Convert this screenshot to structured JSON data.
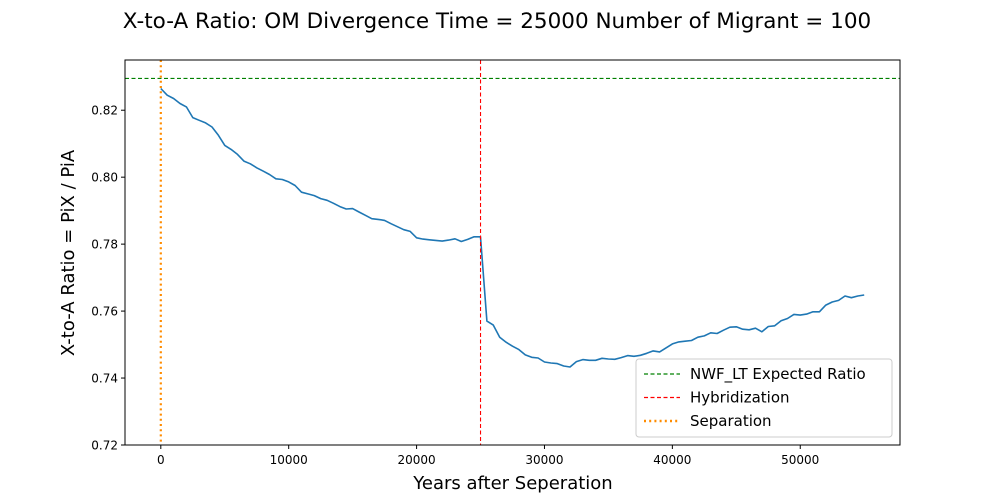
{
  "chart_data": {
    "type": "line",
    "title": "X-to-A Ratio: OM Divergence Time = 25000  Number of Migrant = 100",
    "xlabel": "Years after Seperation",
    "ylabel": "X-to-A Ratio = PiX / PiA",
    "xlim": [
      -2800,
      57800
    ],
    "ylim": [
      0.72,
      0.835
    ],
    "xticks": [
      0,
      10000,
      20000,
      30000,
      40000,
      50000
    ],
    "xtick_labels": [
      "0",
      "10000",
      "20000",
      "30000",
      "40000",
      "50000"
    ],
    "yticks": [
      0.72,
      0.74,
      0.76,
      0.78,
      0.8,
      0.82
    ],
    "ytick_labels": [
      "0.72",
      "0.74",
      "0.76",
      "0.78",
      "0.80",
      "0.82"
    ],
    "grid": false,
    "legend_position": "lower-right",
    "series": [
      {
        "color": "#1f77b4",
        "x": [
          0,
          500,
          1000,
          1500,
          2000,
          2500,
          3000,
          3500,
          4000,
          4500,
          5000,
          5500,
          6000,
          6500,
          7000,
          7500,
          8000,
          8500,
          9000,
          9500,
          10000,
          10500,
          11000,
          11500,
          12000,
          12500,
          13000,
          13500,
          14000,
          14500,
          15000,
          15500,
          16000,
          16500,
          17000,
          17500,
          18000,
          18500,
          19000,
          19500,
          20000,
          20500,
          21000,
          21500,
          22000,
          22500,
          23000,
          23500,
          24000,
          24500,
          25000,
          25500,
          26000,
          26500,
          27000,
          27500,
          28000,
          28500,
          29000,
          29500,
          30000,
          30500,
          31000,
          31500,
          32000,
          32500,
          33000,
          33500,
          34000,
          34500,
          35000,
          35500,
          36000,
          36500,
          37000,
          37500,
          38000,
          38500,
          39000,
          39500,
          40000,
          40500,
          41000,
          41500,
          42000,
          42500,
          43000,
          43500,
          44000,
          44500,
          45000,
          45500,
          46000,
          46500,
          47000,
          47500,
          48000,
          48500,
          49000,
          49500,
          50000,
          50500,
          51000,
          51500,
          52000,
          52500,
          53000,
          53500,
          54000,
          54500,
          55000
        ],
        "y": [
          0.8265,
          0.8245,
          0.8235,
          0.822,
          0.821,
          0.8178,
          0.817,
          0.8162,
          0.815,
          0.8125,
          0.8095,
          0.8083,
          0.8068,
          0.8048,
          0.804,
          0.8028,
          0.8018,
          0.8008,
          0.7995,
          0.7993,
          0.7986,
          0.7975,
          0.7955,
          0.795,
          0.7945,
          0.7936,
          0.7931,
          0.7922,
          0.7912,
          0.7905,
          0.7906,
          0.7896,
          0.7886,
          0.7876,
          0.7874,
          0.7871,
          0.7861,
          0.7852,
          0.7843,
          0.7838,
          0.7819,
          0.7815,
          0.7813,
          0.7811,
          0.7809,
          0.7812,
          0.7816,
          0.7808,
          0.7814,
          0.7822,
          0.7822,
          0.757,
          0.7558,
          0.7522,
          0.7507,
          0.7495,
          0.7485,
          0.7469,
          0.7462,
          0.746,
          0.7448,
          0.7445,
          0.7443,
          0.7436,
          0.7433,
          0.7449,
          0.7455,
          0.7453,
          0.7453,
          0.7459,
          0.7457,
          0.7456,
          0.7461,
          0.7467,
          0.7465,
          0.7468,
          0.7474,
          0.7481,
          0.7478,
          0.749,
          0.7502,
          0.7508,
          0.751,
          0.7512,
          0.7522,
          0.7526,
          0.7535,
          0.7533,
          0.7543,
          0.7552,
          0.7553,
          0.7546,
          0.7544,
          0.7549,
          0.7538,
          0.7554,
          0.7556,
          0.7571,
          0.7578,
          0.759,
          0.7588,
          0.7591,
          0.7598,
          0.7598,
          0.7618,
          0.7627,
          0.7632,
          0.7645,
          0.764,
          0.7645,
          0.7648
        ]
      }
    ],
    "reference_lines": [
      {
        "name": "NWF_LT Expected Ratio",
        "orientation": "horizontal",
        "value": 0.8295,
        "color": "#008000",
        "style": "dashed"
      },
      {
        "name": "Hybridization",
        "orientation": "vertical",
        "value": 25000,
        "color": "#ff0000",
        "style": "dashed"
      },
      {
        "name": "Separation",
        "orientation": "vertical",
        "value": 0,
        "color": "#ff8c00",
        "style": "dotted"
      }
    ]
  }
}
